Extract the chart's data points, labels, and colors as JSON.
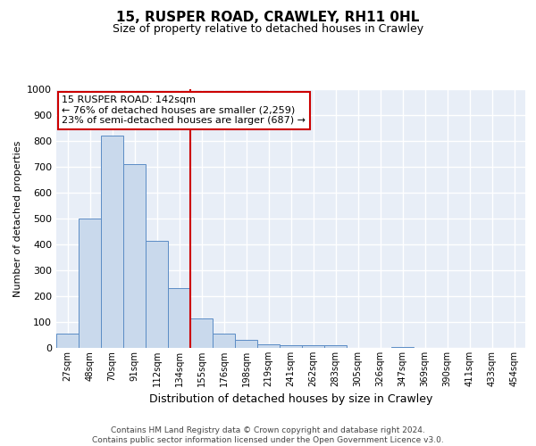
{
  "title1": "15, RUSPER ROAD, CRAWLEY, RH11 0HL",
  "title2": "Size of property relative to detached houses in Crawley",
  "xlabel": "Distribution of detached houses by size in Crawley",
  "ylabel": "Number of detached properties",
  "bin_labels": [
    "27sqm",
    "48sqm",
    "70sqm",
    "91sqm",
    "112sqm",
    "134sqm",
    "155sqm",
    "176sqm",
    "198sqm",
    "219sqm",
    "241sqm",
    "262sqm",
    "283sqm",
    "305sqm",
    "326sqm",
    "347sqm",
    "369sqm",
    "390sqm",
    "411sqm",
    "433sqm",
    "454sqm"
  ],
  "bar_values": [
    55,
    500,
    820,
    710,
    415,
    230,
    115,
    55,
    30,
    15,
    10,
    10,
    10,
    0,
    0,
    5,
    0,
    0,
    0,
    0,
    0
  ],
  "bar_color": "#c9d9ec",
  "bar_edge_color": "#5b8cc5",
  "vline_x": 5.5,
  "vline_color": "#cc0000",
  "annotation_text": "15 RUSPER ROAD: 142sqm\n← 76% of detached houses are smaller (2,259)\n23% of semi-detached houses are larger (687) →",
  "annotation_box_color": "#ffffff",
  "annotation_box_edge": "#cc0000",
  "ylim": [
    0,
    1000
  ],
  "footer_line1": "Contains HM Land Registry data © Crown copyright and database right 2024.",
  "footer_line2": "Contains public sector information licensed under the Open Government Licence v3.0.",
  "bg_color": "#e8eef7",
  "grid_color": "#ffffff"
}
